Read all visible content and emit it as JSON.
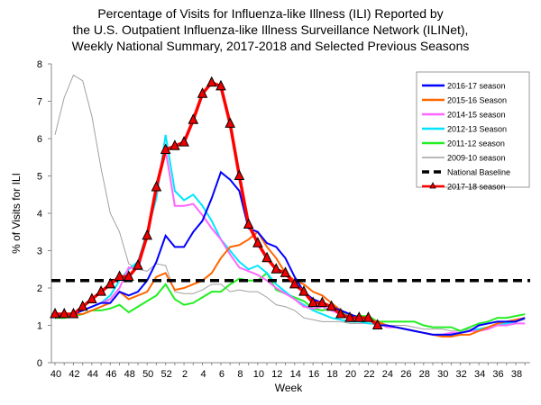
{
  "chart_data": {
    "type": "line",
    "title_lines": [
      "Percentage of Visits for Influenza-like Illness (ILI) Reported by",
      "the U.S. Outpatient Influenza-like Illness Surveillance Network (ILINet),",
      "Weekly National Summary, 2017-2018 and Selected Previous Seasons"
    ],
    "xlabel": "Week",
    "ylabel": "% of Visits for ILI",
    "ylim": [
      0,
      8
    ],
    "yticks": [
      "0",
      "1",
      "2",
      "3",
      "4",
      "5",
      "6",
      "7",
      "8"
    ],
    "weeks": [
      40,
      41,
      42,
      43,
      44,
      45,
      46,
      47,
      48,
      49,
      50,
      51,
      52,
      1,
      2,
      3,
      4,
      5,
      6,
      7,
      8,
      9,
      10,
      11,
      12,
      13,
      14,
      15,
      16,
      17,
      18,
      19,
      20,
      21,
      22,
      23,
      24,
      25,
      26,
      27,
      28,
      29,
      30,
      31,
      32,
      33,
      34,
      35,
      36,
      37,
      38,
      39
    ],
    "xtick_labels": [
      "40",
      "42",
      "44",
      "46",
      "48",
      "50",
      "52",
      "2",
      "4",
      "6",
      "8",
      "10",
      "12",
      "14",
      "16",
      "18",
      "20",
      "22",
      "24",
      "26",
      "28",
      "30",
      "32",
      "34",
      "36",
      "38"
    ],
    "legend_position": "top-right",
    "grid": false,
    "series": [
      {
        "name": "2016-17 season",
        "color": "#0000ff",
        "values": [
          1.2,
          1.3,
          1.3,
          1.4,
          1.5,
          1.6,
          1.6,
          1.9,
          1.8,
          1.9,
          2.2,
          2.7,
          3.4,
          3.1,
          3.1,
          3.5,
          3.8,
          4.4,
          5.1,
          4.9,
          4.6,
          3.6,
          3.5,
          3.2,
          3.1,
          2.8,
          2.3,
          1.9,
          1.7,
          1.6,
          1.5,
          1.4,
          1.3,
          1.2,
          1.2,
          1.0,
          1.0,
          0.95,
          0.9,
          0.85,
          0.8,
          0.75,
          0.75,
          0.75,
          0.8,
          0.85,
          1.0,
          1.05,
          1.1,
          1.1,
          1.1,
          1.2
        ]
      },
      {
        "name": "2015-16 Season",
        "color": "#ff6600",
        "values": [
          1.2,
          1.3,
          1.3,
          1.3,
          1.4,
          1.5,
          1.6,
          1.9,
          1.7,
          1.8,
          1.9,
          2.3,
          2.4,
          1.95,
          2.0,
          2.1,
          2.2,
          2.4,
          2.8,
          3.1,
          3.15,
          3.3,
          3.5,
          3.1,
          2.8,
          2.4,
          2.2,
          2.1,
          1.9,
          1.8,
          1.6,
          1.4,
          1.3,
          1.2,
          1.15,
          1.1,
          1.0,
          0.95,
          0.9,
          0.85,
          0.8,
          0.75,
          0.7,
          0.7,
          0.75,
          0.75,
          0.85,
          0.95,
          1.05,
          1.1,
          1.15,
          1.2
        ]
      },
      {
        "name": "2014-15 season",
        "color": "#ff66ff",
        "values": [
          1.2,
          1.3,
          1.3,
          1.4,
          1.5,
          1.6,
          1.7,
          2.0,
          2.55,
          2.5,
          3.4,
          4.6,
          5.7,
          4.2,
          4.2,
          4.25,
          3.95,
          3.6,
          3.3,
          2.9,
          2.55,
          2.45,
          2.35,
          2.2,
          2.0,
          1.85,
          1.7,
          1.5,
          1.45,
          1.5,
          1.4,
          1.3,
          1.25,
          1.2,
          1.15,
          1.1,
          0.95,
          0.95,
          0.9,
          0.85,
          0.8,
          0.75,
          0.75,
          0.8,
          0.8,
          0.85,
          0.85,
          0.9,
          1.0,
          1.0,
          1.05,
          1.05
        ]
      },
      {
        "name": "2012-13 Season",
        "color": "#00e5ff",
        "values": [
          1.2,
          1.3,
          1.3,
          1.4,
          1.5,
          1.6,
          1.8,
          2.2,
          2.5,
          2.7,
          3.5,
          4.4,
          6.1,
          4.6,
          4.35,
          4.5,
          4.2,
          3.8,
          3.3,
          3.0,
          2.7,
          2.5,
          2.6,
          2.4,
          2.1,
          1.9,
          1.7,
          1.55,
          1.4,
          1.3,
          1.2,
          1.15,
          1.1,
          1.1,
          1.05,
          1.05,
          1.0,
          0.95,
          0.9,
          0.85,
          0.8,
          0.75,
          0.75,
          0.75,
          0.8,
          0.85,
          0.9,
          0.95,
          1.0,
          1.05,
          1.1,
          1.2
        ]
      },
      {
        "name": "2011-12 season",
        "color": "#22ee22",
        "values": [
          1.2,
          1.2,
          1.25,
          1.3,
          1.4,
          1.4,
          1.45,
          1.55,
          1.35,
          1.5,
          1.65,
          1.8,
          2.1,
          1.7,
          1.55,
          1.6,
          1.75,
          1.9,
          1.9,
          2.1,
          2.25,
          2.2,
          2.2,
          2.4,
          1.95,
          1.85,
          1.75,
          1.65,
          1.45,
          1.4,
          1.45,
          1.35,
          1.25,
          1.25,
          1.25,
          1.1,
          1.1,
          1.1,
          1.1,
          1.1,
          1.0,
          0.95,
          0.95,
          0.95,
          0.85,
          0.95,
          1.05,
          1.1,
          1.2,
          1.2,
          1.25,
          1.3
        ]
      },
      {
        "name": "2009-10 season",
        "color": "#a0a0a0",
        "values": [
          6.1,
          7.1,
          7.7,
          7.55,
          6.6,
          5.2,
          4.0,
          3.5,
          2.65,
          2.5,
          2.45,
          2.65,
          2.6,
          1.9,
          1.85,
          1.85,
          1.95,
          2.1,
          2.1,
          1.9,
          1.95,
          1.9,
          1.9,
          1.75,
          1.55,
          1.5,
          1.4,
          1.2,
          1.15,
          1.1,
          1.1,
          1.1,
          1.05,
          1.05,
          1.05,
          1.0,
          1.0,
          1.0,
          1.0,
          0.95,
          0.9,
          0.9,
          0.9,
          0.85,
          0.85,
          0.9,
          0.9,
          0.95,
          1.0,
          1.05,
          1.1,
          1.15
        ]
      },
      {
        "name": "National Baseline",
        "color": "#000000",
        "dashed": true,
        "value": 2.2
      },
      {
        "name": "2017-18 season",
        "color": "#ff0000",
        "marker": "triangle",
        "values": [
          1.3,
          1.3,
          1.3,
          1.5,
          1.7,
          1.9,
          2.1,
          2.3,
          2.3,
          2.6,
          3.4,
          4.7,
          5.7,
          5.8,
          5.9,
          6.5,
          7.2,
          7.5,
          7.4,
          6.4,
          5.0,
          3.7,
          3.2,
          2.8,
          2.5,
          2.4,
          2.1,
          1.9,
          1.6,
          1.6,
          1.5,
          1.3,
          1.2,
          1.2,
          1.2,
          1.0
        ]
      }
    ]
  }
}
